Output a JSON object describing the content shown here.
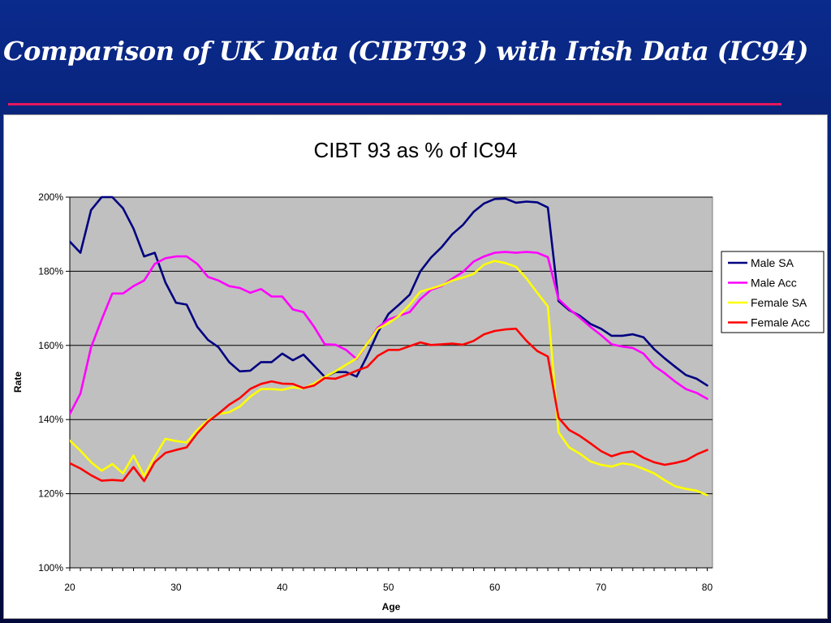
{
  "slide": {
    "title": "Comparison of UK Data (CIBT93 ) with Irish Data (IC94)"
  },
  "colors": {
    "background": "#0a2a8c",
    "rule": "#e8175d",
    "plot_area": "#c0c0c0"
  },
  "chart_data": {
    "type": "line",
    "title": "CIBT 93 as % of IC94",
    "xlabel": "Age",
    "ylabel": "Rate",
    "xlim": [
      20,
      80.5
    ],
    "ylim": [
      100,
      200
    ],
    "x_ticks": [
      "20",
      "30",
      "40",
      "50",
      "60",
      "70",
      "80"
    ],
    "y_ticks": [
      "100%",
      "120%",
      "140%",
      "160%",
      "180%",
      "200%"
    ],
    "grid": "horizontal",
    "legend": "right",
    "x": [
      20,
      21,
      22,
      23,
      24,
      25,
      26,
      27,
      28,
      29,
      30,
      31,
      32,
      33,
      34,
      35,
      36,
      37,
      38,
      39,
      40,
      41,
      42,
      43,
      44,
      45,
      46,
      47,
      48,
      49,
      50,
      51,
      52,
      53,
      54,
      55,
      56,
      57,
      58,
      59,
      60,
      61,
      62,
      63,
      64,
      65,
      66,
      67,
      68,
      69,
      70,
      71,
      72,
      73,
      74,
      75,
      76,
      77,
      78,
      79,
      80
    ],
    "series": [
      {
        "name": "Male SA",
        "color": "#000080",
        "values": [
          188,
          185,
          196.5,
          200,
          200,
          197,
          191.5,
          184,
          185,
          177,
          171.5,
          171,
          165,
          161.5,
          159.5,
          155.5,
          153,
          153.2,
          155.5,
          155.5,
          157.8,
          156,
          157.5,
          154.5,
          151.5,
          152.8,
          152.8,
          151.6,
          157.2,
          163.5,
          168.5,
          171,
          173.7,
          180,
          183.7,
          186.5,
          190,
          192.5,
          196,
          198.3,
          199.5,
          199.6,
          198.5,
          198.8,
          198.6,
          197.2,
          172,
          169.5,
          168,
          165.8,
          164.5,
          162.6,
          162.6,
          163,
          162.2,
          159,
          156.5,
          154.2,
          152,
          151,
          149.2
        ]
      },
      {
        "name": "Male Acc",
        "color": "#ff00ff",
        "values": [
          141.5,
          147,
          159.5,
          167,
          174,
          174,
          176,
          177.5,
          182,
          183.5,
          184,
          184,
          182,
          178.5,
          177.5,
          176,
          175.5,
          174.2,
          175.2,
          173.2,
          173.2,
          169.7,
          169,
          165,
          160.3,
          160.2,
          158.8,
          156.3,
          160.5,
          164.8,
          167,
          168,
          169,
          172.5,
          175,
          176,
          178,
          179.8,
          182.6,
          184,
          185,
          185.2,
          185,
          185.2,
          185,
          183.8,
          172.5,
          169.8,
          167.5,
          165,
          162.8,
          160.3,
          159.7,
          159.3,
          157.8,
          154.5,
          152.5,
          150.2,
          148.2,
          147.2,
          145.6
        ]
      },
      {
        "name": "Female SA",
        "color": "#ffff00",
        "values": [
          134.3,
          131.6,
          128.5,
          126.2,
          128,
          125.5,
          130.3,
          124.8,
          130,
          134.8,
          134.2,
          133.8,
          137.2,
          139.8,
          141.5,
          142,
          143.5,
          146.2,
          148.2,
          148.2,
          148,
          148.7,
          148.4,
          149.7,
          151.5,
          153,
          154.8,
          156.5,
          160.5,
          164.5,
          166,
          168,
          171,
          174.5,
          175.3,
          176.2,
          177.5,
          178.3,
          179.3,
          181.8,
          182.8,
          182.2,
          181.2,
          178,
          174.2,
          170.5,
          136.6,
          132.5,
          130.8,
          128.7,
          127.8,
          127.3,
          128.2,
          127.8,
          126.7,
          125.5,
          123.6,
          122,
          121.3,
          120.8,
          119.6
        ]
      },
      {
        "name": "Female Acc",
        "color": "#ff0000",
        "values": [
          128.2,
          126.8,
          125,
          123.5,
          123.7,
          123.5,
          127.2,
          123.4,
          128.5,
          131,
          131.8,
          132.5,
          136.3,
          139.4,
          141.6,
          144,
          145.8,
          148.3,
          149.6,
          150.3,
          149.7,
          149.6,
          148.5,
          149.2,
          151.2,
          151,
          152,
          153.2,
          154.2,
          157.2,
          158.8,
          158.8,
          159.8,
          160.8,
          160.1,
          160.3,
          160.5,
          160.2,
          161.2,
          163,
          163.9,
          164.3,
          164.5,
          161.2,
          158.5,
          157,
          140.5,
          137.2,
          135.6,
          133.6,
          131.5,
          130.1,
          131,
          131.4,
          129.7,
          128.5,
          127.8,
          128.3,
          129,
          130.6,
          131.8
        ]
      }
    ]
  }
}
